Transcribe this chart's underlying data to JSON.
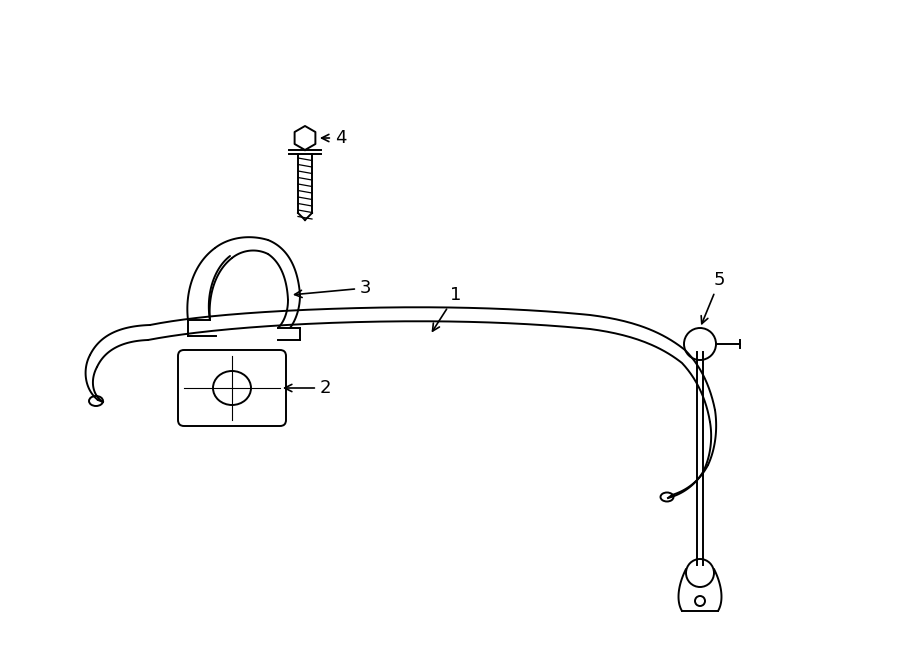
{
  "bg_color": "#ffffff",
  "line_color": "#000000",
  "lw": 1.4,
  "label_fontsize": 13,
  "fig_w": 9.0,
  "fig_h": 6.61,
  "xlim": [
    0,
    900
  ],
  "ylim": [
    0,
    661
  ]
}
